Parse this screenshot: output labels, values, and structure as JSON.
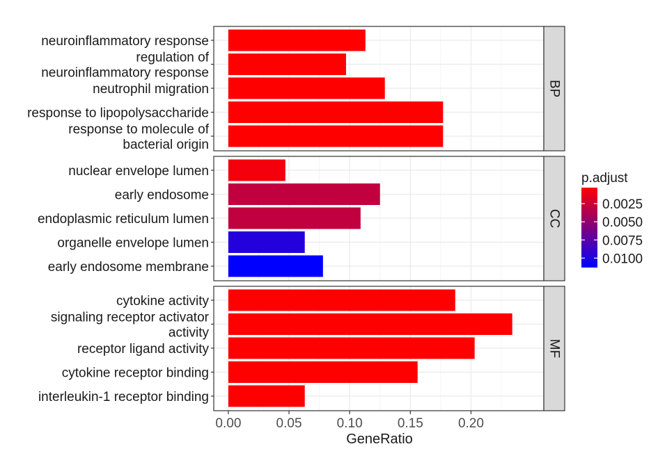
{
  "chart_data": {
    "type": "bar",
    "orientation": "horizontal",
    "xlabel": "GeneRatio",
    "ylabel": "",
    "xlim": [
      -0.012,
      0.26
    ],
    "x_ticks": [
      0,
      0.05,
      0.1,
      0.15,
      0.2
    ],
    "x_tick_labels": [
      "0.00",
      "0.05",
      "0.10",
      "0.15",
      "0.20"
    ],
    "grid": true,
    "legend_position": "right",
    "color_legend": {
      "title": "p.adjust",
      "range": [
        0.0003,
        0.0113
      ],
      "low_color": "#ff0000",
      "high_color": "#0000ff",
      "ticks": [
        0.0025,
        0.005,
        0.0075,
        0.01
      ],
      "tick_labels": [
        "0.0025",
        "0.0050",
        "0.0075",
        "0.0100"
      ]
    },
    "facets": [
      {
        "strip": "BP",
        "bars": [
          {
            "label": [
              "neuroinflammatory response"
            ],
            "value": 0.113,
            "p_adjust": 0.0003
          },
          {
            "label": [
              "regulation of",
              "neuroinflammatory response"
            ],
            "value": 0.097,
            "p_adjust": 0.0003
          },
          {
            "label": [
              "neutrophil migration"
            ],
            "value": 0.129,
            "p_adjust": 0.0003
          },
          {
            "label": [
              "response to lipopolysaccharide"
            ],
            "value": 0.177,
            "p_adjust": 0.0003
          },
          {
            "label": [
              "response to molecule of",
              "bacterial origin"
            ],
            "value": 0.177,
            "p_adjust": 0.0003
          }
        ]
      },
      {
        "strip": "CC",
        "bars": [
          {
            "label": [
              "nuclear envelope lumen"
            ],
            "value": 0.047,
            "p_adjust": 0.0008
          },
          {
            "label": [
              "early endosome"
            ],
            "value": 0.125,
            "p_adjust": 0.003
          },
          {
            "label": [
              "endoplasmic reticulum lumen"
            ],
            "value": 0.109,
            "p_adjust": 0.003
          },
          {
            "label": [
              "organelle envelope lumen"
            ],
            "value": 0.063,
            "p_adjust": 0.0098
          },
          {
            "label": [
              "early endosome membrane"
            ],
            "value": 0.078,
            "p_adjust": 0.0113
          }
        ]
      },
      {
        "strip": "MF",
        "bars": [
          {
            "label": [
              "cytokine activity"
            ],
            "value": 0.187,
            "p_adjust": 0.0003
          },
          {
            "label": [
              "signaling receptor activator",
              "activity"
            ],
            "value": 0.234,
            "p_adjust": 0.0003
          },
          {
            "label": [
              "receptor ligand activity"
            ],
            "value": 0.203,
            "p_adjust": 0.0003
          },
          {
            "label": [
              "cytokine receptor binding"
            ],
            "value": 0.156,
            "p_adjust": 0.0003
          },
          {
            "label": [
              "interleukin-1 receptor binding"
            ],
            "value": 0.063,
            "p_adjust": 0.0003
          }
        ]
      }
    ]
  }
}
